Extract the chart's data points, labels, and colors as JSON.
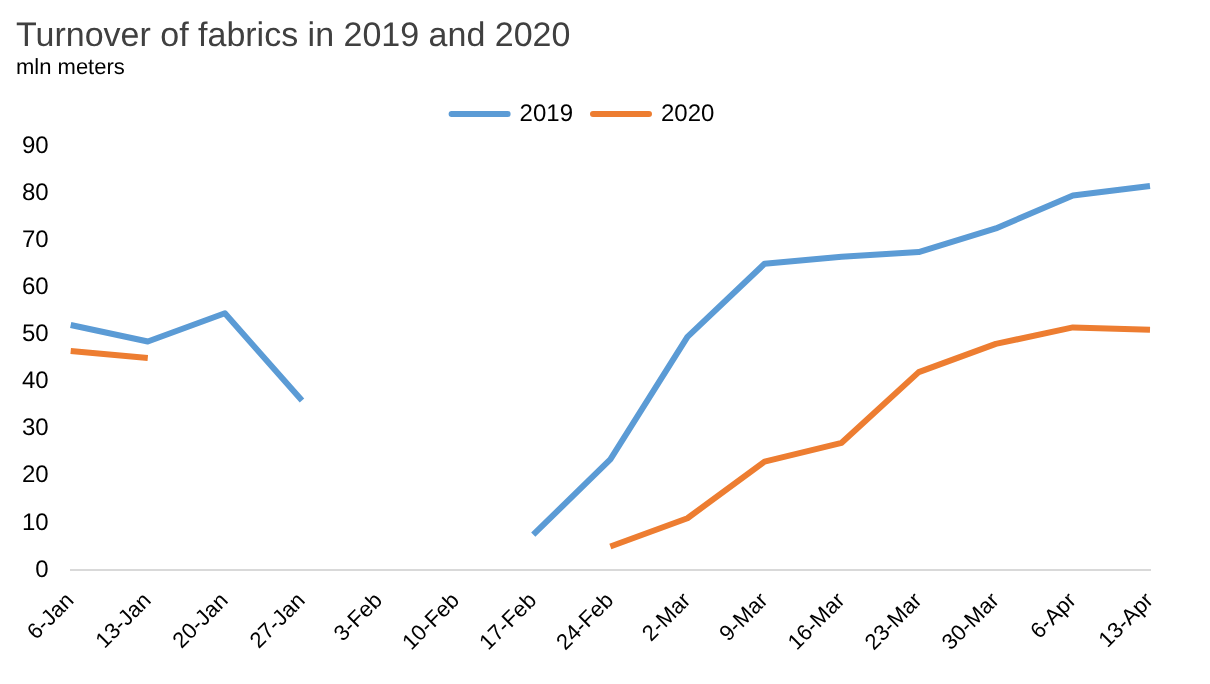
{
  "chart_data": {
    "type": "line",
    "title": "Turnover of fabrics in 2019 and 2020",
    "ylabel": "mln meters",
    "categories": [
      "6-Jan",
      "13-Jan",
      "20-Jan",
      "27-Jan",
      "3-Feb",
      "10-Feb",
      "17-Feb",
      "24-Feb",
      "2-Mar",
      "9-Mar",
      "16-Mar",
      "23-Mar",
      "30-Mar",
      "6-Apr",
      "13-Apr"
    ],
    "series": [
      {
        "name": "2019",
        "color": "#5b9bd5",
        "values": [
          52,
          48.5,
          54.5,
          36,
          null,
          null,
          7.5,
          23.5,
          49.5,
          65,
          66.5,
          67.5,
          72.5,
          79.5,
          81.5
        ]
      },
      {
        "name": "2020",
        "color": "#ed7d31",
        "values": [
          46.5,
          45,
          null,
          null,
          null,
          null,
          null,
          5,
          11,
          23,
          27,
          42,
          48,
          51.5,
          51
        ]
      }
    ],
    "ylim": [
      0,
      90
    ],
    "yticks": [
      0,
      10,
      20,
      30,
      40,
      50,
      60,
      70,
      80,
      90
    ],
    "grid": false,
    "legend": "top",
    "marker": "none",
    "line_style": "solid"
  }
}
